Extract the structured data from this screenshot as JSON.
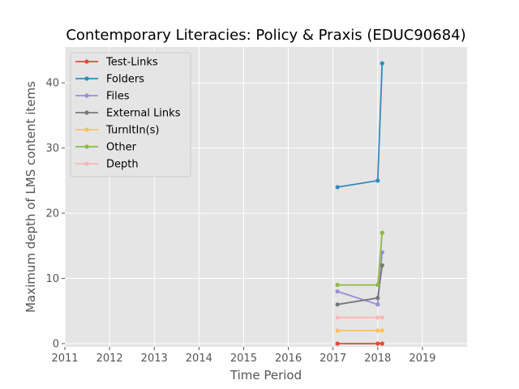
{
  "chart_data": {
    "type": "line",
    "title": "Contemporary Literacies: Policy & Praxis (EDUC90684)",
    "xlabel": "Time Period",
    "ylabel": "Maximum depth of LMS content items",
    "xlim": [
      2011,
      2020
    ],
    "ylim": [
      -0.5,
      45.5
    ],
    "x_ticks": [
      2011,
      2012,
      2013,
      2014,
      2015,
      2016,
      2017,
      2018,
      2019
    ],
    "y_ticks": [
      0,
      10,
      20,
      30,
      40
    ],
    "grid": true,
    "legend_position": "upper-left",
    "x": [
      2017.1,
      2018.0,
      2018.1
    ],
    "series": [
      {
        "name": "Test-Links",
        "color": "#E24A33",
        "values": [
          0,
          0,
          0
        ]
      },
      {
        "name": "Folders",
        "color": "#348ABD",
        "values": [
          24,
          25,
          43
        ]
      },
      {
        "name": "Files",
        "color": "#988ED5",
        "values": [
          8,
          6,
          14
        ]
      },
      {
        "name": "External Links",
        "color": "#777777",
        "values": [
          6,
          7,
          12
        ]
      },
      {
        "name": "TurnItIn(s)",
        "color": "#FBC15E",
        "values": [
          2,
          2,
          2
        ]
      },
      {
        "name": "Other",
        "color": "#8EBA42",
        "values": [
          9,
          9,
          17
        ]
      },
      {
        "name": "Depth",
        "color": "#FFB5B8",
        "values": [
          4,
          4,
          4
        ]
      }
    ]
  }
}
